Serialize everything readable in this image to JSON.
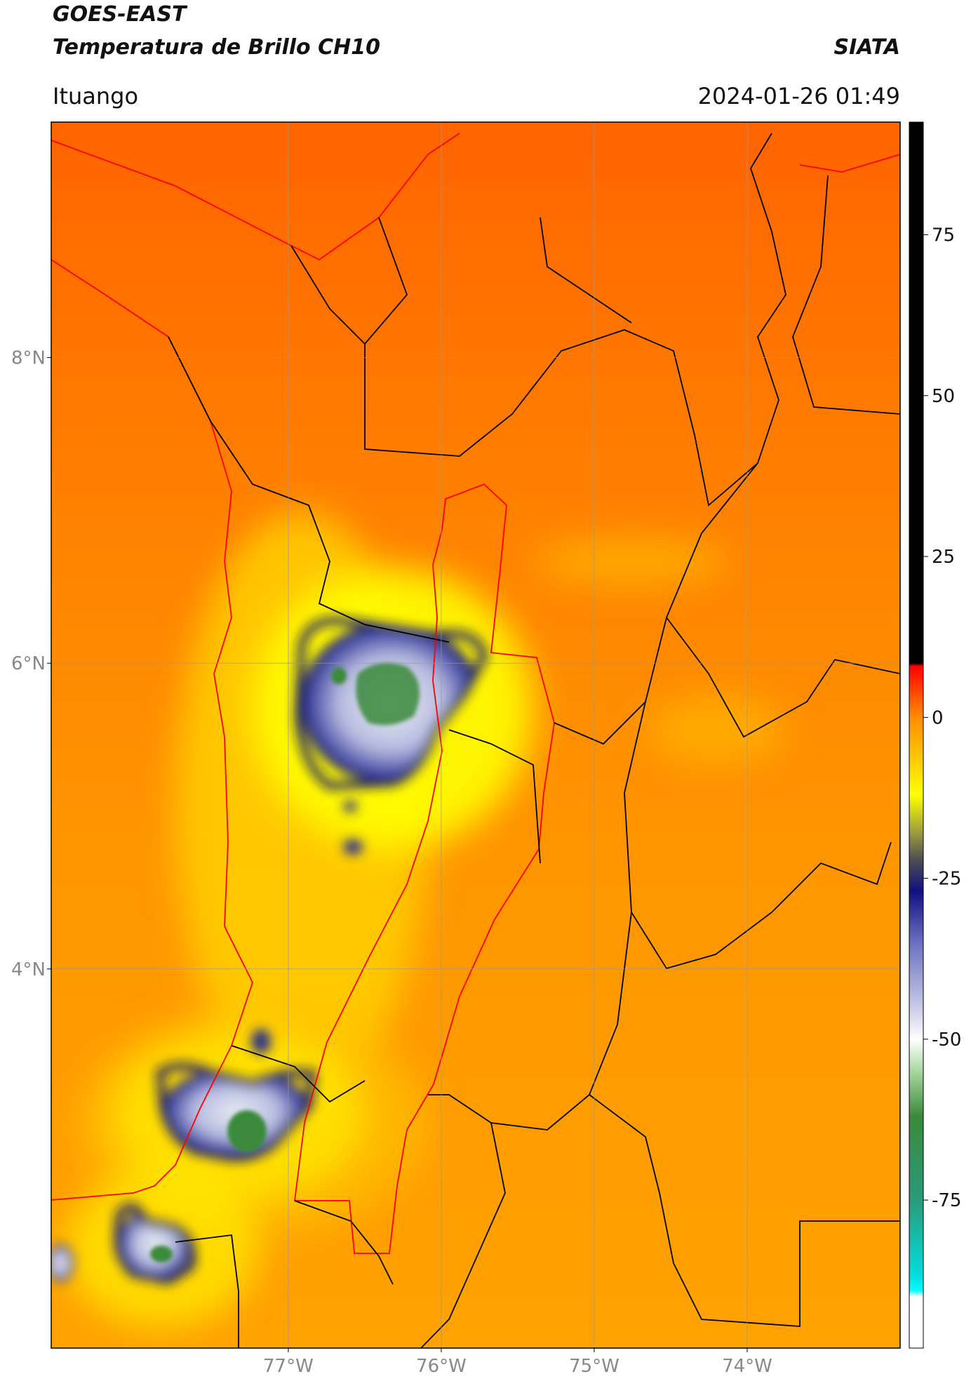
{
  "header": {
    "title": "GOES-EAST",
    "subtitle": "Temperatura de Brillo CH10",
    "source": "SIATA",
    "location": "Ituango",
    "timestamp": "2024-01-26 01:49"
  },
  "map": {
    "xlim": [
      -78.55,
      -73.0
    ],
    "ylim": [
      1.52,
      9.54
    ],
    "xticks": [
      {
        "value": -77,
        "label": "77°W"
      },
      {
        "value": -76,
        "label": "76°W"
      },
      {
        "value": -75,
        "label": "75°W"
      },
      {
        "value": -74,
        "label": "74°W"
      }
    ],
    "yticks": [
      {
        "value": 8,
        "label": "8°N"
      },
      {
        "value": 6,
        "label": "6°N"
      },
      {
        "value": 4,
        "label": "4°N"
      }
    ],
    "grid": true
  },
  "colorbar": {
    "lim": [
      -98,
      92.5
    ],
    "ticks": [
      75,
      50,
      25,
      0,
      -25,
      -50,
      -75
    ]
  }
}
